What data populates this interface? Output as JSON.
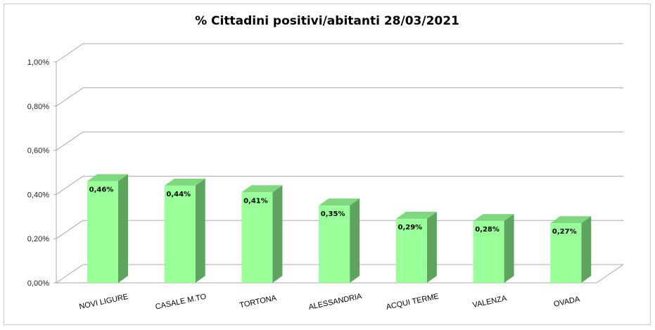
{
  "chart_data": {
    "type": "bar",
    "title": "% Cittadini positivi/abitanti 28/03/2021",
    "categories": [
      "NOVI LIGURE",
      "CASALE M.TO",
      "TORTONA",
      "ALESSANDRIA",
      "ACQUI TERME",
      "VALENZA",
      "OVADA"
    ],
    "values": [
      0.46,
      0.44,
      0.41,
      0.35,
      0.29,
      0.28,
      0.27
    ],
    "data_labels": [
      "0,46%",
      "0,44%",
      "0,41%",
      "0,35%",
      "0,29%",
      "0,28%",
      "0,27%"
    ],
    "yticks": [
      "0,00%",
      "0,20%",
      "0,40%",
      "0,60%",
      "0,80%",
      "1,00%"
    ],
    "ylim": [
      0,
      1.0
    ],
    "grid": true,
    "legend": "none",
    "style": "3d-column",
    "colors": {
      "bar_front": "#99ff99",
      "bar_side": "#5ea45e",
      "bar_top": "#7fd87f",
      "grid": "#aaaaaa"
    }
  }
}
